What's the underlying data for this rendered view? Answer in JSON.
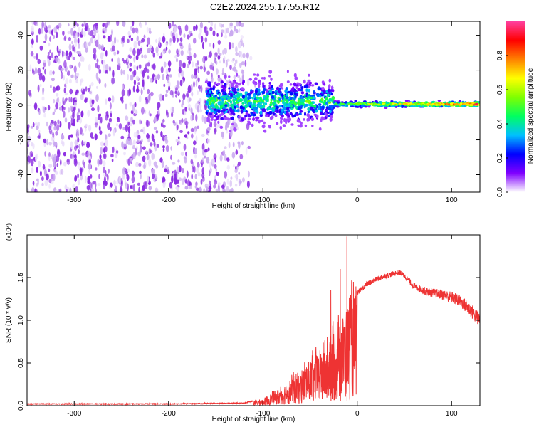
{
  "title": "C2E2.2024.255.17.55.R12",
  "chart_data": [
    {
      "type": "heatmap",
      "title": "",
      "xlabel": "Height of straight line (km)",
      "ylabel": "Frequency (Hz)",
      "xlim": [
        -350,
        130
      ],
      "ylim": [
        -50,
        48
      ],
      "xticks": [
        -300,
        -200,
        -100,
        0,
        100
      ],
      "yticks": [
        -40,
        -20,
        0,
        20,
        40
      ],
      "colorbar": {
        "label": "Normalized spectral amplitude",
        "range": [
          0.0,
          1.0
        ],
        "ticks": [
          0.0,
          0.2,
          0.4,
          0.6,
          0.8
        ],
        "colormap": [
          "#ffffff",
          "#8000ff",
          "#0000ff",
          "#00c0ff",
          "#00ff60",
          "#80ff00",
          "#ffff00",
          "#ff8000",
          "#ff0000",
          "#ff40a0"
        ]
      },
      "features": [
        {
          "region": "noise",
          "x_range": [
            -350,
            -120
          ],
          "freq_range": [
            -50,
            48
          ],
          "amplitude": 0.05
        },
        {
          "region": "transition",
          "x_range": [
            -160,
            -25
          ],
          "center_freq": 2,
          "spread_hz": 7,
          "amplitude": 0.45
        },
        {
          "region": "narrow-signal",
          "x_range": [
            -25,
            130
          ],
          "center_freq": 0.5,
          "spread_hz": 1.5,
          "amplitude": 0.9
        }
      ]
    },
    {
      "type": "line",
      "title": "",
      "xlabel": "Height of straight line (km)",
      "ylabel": "SNR (10 * v/v)",
      "y_multiplier": "(x10⁴)",
      "xlim": [
        -350,
        130
      ],
      "ylim": [
        0,
        2.0
      ],
      "xticks": [
        -300,
        -200,
        -100,
        0,
        100
      ],
      "yticks": [
        0.0,
        0.5,
        1.0,
        1.5
      ],
      "series": [
        {
          "color": "#ee3333",
          "envelope": {
            "x": [
              -350,
              -200,
              -120,
              -100,
              -80,
              -60,
              -40,
              -20,
              -12,
              -8,
              -5,
              0,
              10,
              20,
              30,
              40,
              45,
              50,
              60,
              70,
              80,
              90,
              100,
              110,
              120,
              128
            ],
            "y": [
              0.02,
              0.02,
              0.03,
              0.08,
              0.22,
              0.42,
              0.65,
              0.95,
              1.15,
              1.25,
              1.3,
              1.32,
              1.42,
              1.48,
              1.52,
              1.55,
              1.56,
              1.52,
              1.4,
              1.35,
              1.32,
              1.3,
              1.27,
              1.22,
              1.12,
              1.02
            ]
          },
          "spikes": [
            {
              "x": -11,
              "y": 1.98
            },
            {
              "x": -18,
              "y": 1.6
            },
            {
              "x": -28,
              "y": 1.35
            }
          ]
        }
      ]
    }
  ]
}
